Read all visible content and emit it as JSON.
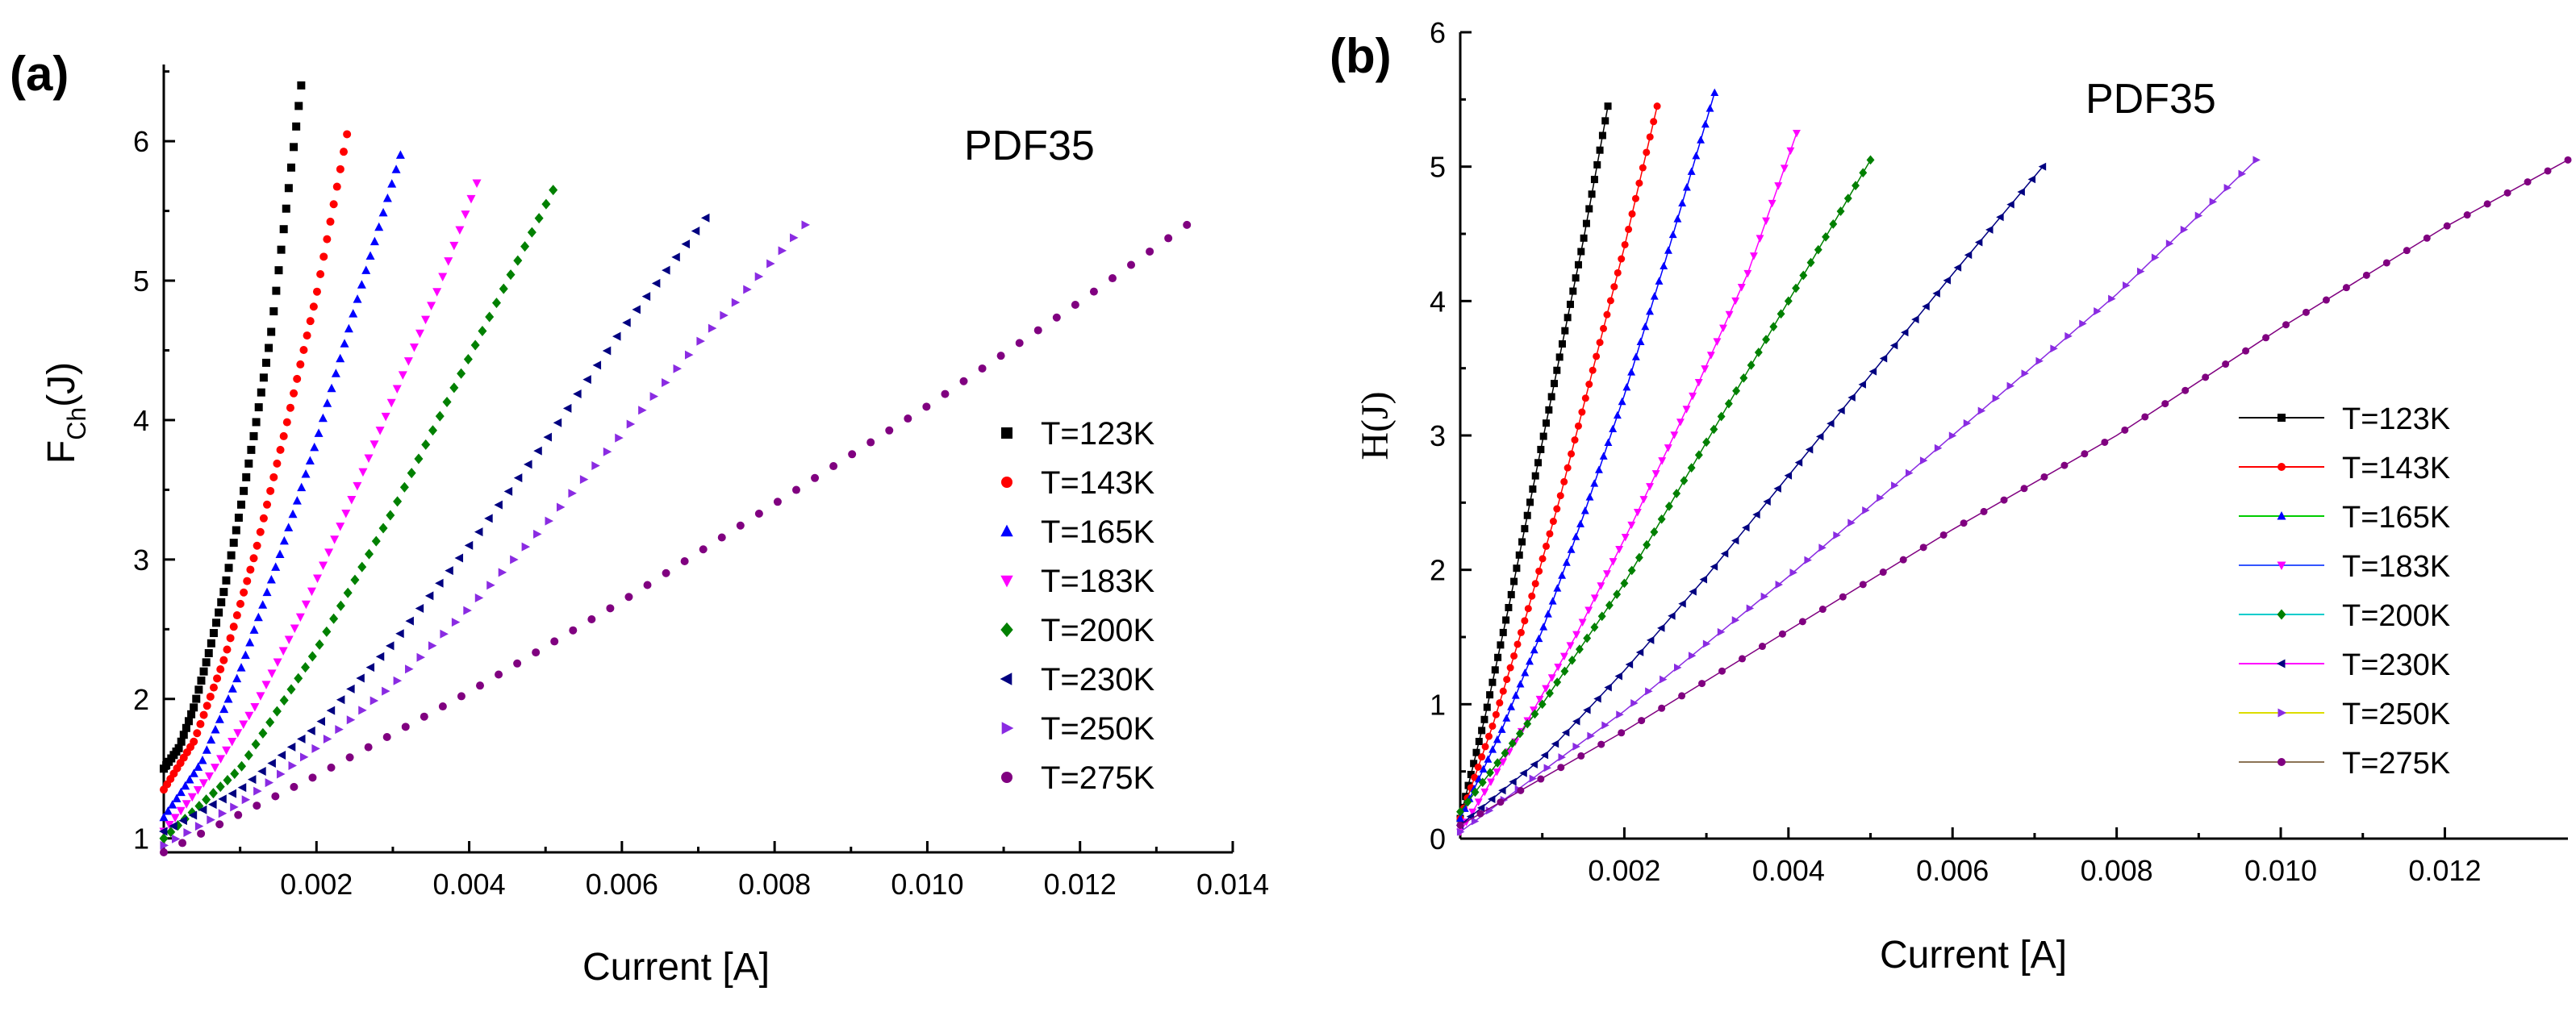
{
  "chart_data": [
    {
      "type": "scatter",
      "panel": "(a)",
      "annotation": "PDF35",
      "xlabel": "Current [A]",
      "ylabel_main": "F",
      "ylabel_sub": "Ch",
      "ylabel_tail": "(J)",
      "xlim": [
        0,
        0.014
      ],
      "ylim": [
        0.9,
        6.55
      ],
      "xticks": [
        0.002,
        0.004,
        0.006,
        0.008,
        0.01,
        0.012,
        0.014
      ],
      "xtick_labels": [
        "0.002",
        "0.004",
        "0.006",
        "0.008",
        "0.010",
        "0.012",
        "0.014"
      ],
      "yticks": [
        1,
        2,
        3,
        4,
        5,
        6
      ],
      "ytick_labels": [
        "1",
        "2",
        "3",
        "4",
        "5",
        "6"
      ],
      "legend_position": "right",
      "series": [
        {
          "name": "T=123K",
          "color": "#000000",
          "marker": "square",
          "x": [
            0,
            0.0002,
            0.0004,
            0.0006,
            0.0008,
            0.001,
            0.0012,
            0.0014,
            0.0016,
            0.0018
          ],
          "y": [
            1.5,
            1.65,
            1.95,
            2.35,
            2.8,
            3.35,
            3.95,
            4.6,
            5.5,
            6.4
          ]
        },
        {
          "name": "T=143K",
          "color": "#ff0000",
          "marker": "circle",
          "x": [
            0,
            0.0004,
            0.0008,
            0.0012,
            0.0016,
            0.002,
            0.0024
          ],
          "y": [
            1.35,
            1.7,
            2.3,
            3.05,
            3.95,
            4.9,
            6.05
          ]
        },
        {
          "name": "T=165K",
          "color": "#0000ff",
          "marker": "triangle-up",
          "x": [
            0,
            0.0005,
            0.001,
            0.0015,
            0.002,
            0.0025,
            0.0031
          ],
          "y": [
            1.15,
            1.55,
            2.2,
            3.0,
            3.85,
            4.8,
            5.9
          ]
        },
        {
          "name": "T=183K",
          "color": "#ff00ff",
          "marker": "triangle-down",
          "x": [
            0,
            0.0006,
            0.0012,
            0.0018,
            0.0024,
            0.003,
            0.0036,
            0.0041
          ],
          "y": [
            1.05,
            1.45,
            1.95,
            2.6,
            3.35,
            4.15,
            4.95,
            5.7
          ]
        },
        {
          "name": "T=200K",
          "color": "#008000",
          "marker": "diamond",
          "x": [
            0,
            0.001,
            0.002,
            0.003,
            0.004,
            0.0051
          ],
          "y": [
            1.0,
            1.5,
            2.35,
            3.35,
            4.45,
            5.65
          ]
        },
        {
          "name": "T=230K",
          "color": "#000080",
          "marker": "triangle-left",
          "x": [
            0,
            0.001,
            0.002,
            0.003,
            0.004,
            0.005,
            0.006,
            0.0071
          ],
          "y": [
            1.05,
            1.35,
            1.8,
            2.4,
            3.1,
            3.85,
            4.65,
            5.45
          ]
        },
        {
          "name": "T=250K",
          "color": "#8a2be2",
          "marker": "triangle-right",
          "x": [
            0,
            0.001,
            0.002,
            0.003,
            0.004,
            0.005,
            0.006,
            0.007,
            0.0084
          ],
          "y": [
            0.95,
            1.25,
            1.65,
            2.1,
            2.65,
            3.25,
            3.9,
            4.55,
            5.4
          ]
        },
        {
          "name": "T=275K",
          "color": "#800080",
          "marker": "circle",
          "x": [
            0,
            0.002,
            0.004,
            0.006,
            0.008,
            0.01,
            0.012,
            0.0134
          ],
          "y": [
            0.9,
            1.45,
            2.05,
            2.7,
            3.4,
            4.1,
            4.85,
            5.4
          ]
        }
      ]
    },
    {
      "type": "line",
      "panel": "(b)",
      "annotation": "PDF35",
      "xlabel": "Current [A]",
      "ylabel": "H(J)",
      "xlim": [
        0,
        0.0135
      ],
      "ylim": [
        0,
        6
      ],
      "xticks": [
        0.002,
        0.004,
        0.006,
        0.008,
        0.01,
        0.012
      ],
      "xtick_labels": [
        "0.002",
        "0.004",
        "0.006",
        "0.008",
        "0.010",
        "0.012"
      ],
      "yticks": [
        0,
        1,
        2,
        3,
        4,
        5,
        6
      ],
      "ytick_labels": [
        "0",
        "1",
        "2",
        "3",
        "4",
        "5",
        "6"
      ],
      "legend_position": "right",
      "series": [
        {
          "name": "T=123K",
          "color": "#000000",
          "legend_line": "#000000",
          "marker": "square",
          "x": [
            0,
            0.0003,
            0.0006,
            0.0009,
            0.0012,
            0.0015,
            0.0018
          ],
          "y": [
            0.15,
            0.9,
            1.75,
            2.65,
            3.55,
            4.45,
            5.45
          ]
        },
        {
          "name": "T=143K",
          "color": "#ff0000",
          "legend_line": "#ff0000",
          "marker": "circle",
          "x": [
            0,
            0.0004,
            0.0008,
            0.0012,
            0.0016,
            0.002,
            0.0024
          ],
          "y": [
            0.15,
            0.85,
            1.65,
            2.5,
            3.45,
            4.4,
            5.45
          ]
        },
        {
          "name": "T=165K",
          "color": "#0000ff",
          "legend_line": "#00cc00",
          "marker": "triangle-up",
          "x": [
            0,
            0.0005,
            0.001,
            0.0015,
            0.002,
            0.0025,
            0.0031
          ],
          "y": [
            0.15,
            0.8,
            1.55,
            2.4,
            3.3,
            4.3,
            5.55
          ]
        },
        {
          "name": "T=183K",
          "color": "#ff00ff",
          "legend_line": "#3355ff",
          "marker": "triangle-down",
          "x": [
            0,
            0.0007,
            0.0014,
            0.0021,
            0.0028,
            0.0035,
            0.0041
          ],
          "y": [
            0.05,
            0.75,
            1.5,
            2.35,
            3.25,
            4.2,
            5.25
          ]
        },
        {
          "name": "T=200K",
          "color": "#008000",
          "legend_line": "#00cccc",
          "marker": "diamond",
          "x": [
            0,
            0.001,
            0.002,
            0.003,
            0.004,
            0.005
          ],
          "y": [
            0.2,
            1.0,
            1.9,
            2.95,
            4.0,
            5.05
          ]
        },
        {
          "name": "T=230K",
          "color": "#000080",
          "legend_line": "#ff00ff",
          "marker": "triangle-left",
          "x": [
            0,
            0.001,
            0.002,
            0.003,
            0.004,
            0.005,
            0.006,
            0.0071
          ],
          "y": [
            0.1,
            0.6,
            1.25,
            1.95,
            2.7,
            3.45,
            4.2,
            5.0
          ]
        },
        {
          "name": "T=250K",
          "color": "#8a2be2",
          "legend_line": "#dddd00",
          "marker": "triangle-right",
          "x": [
            0,
            0.002,
            0.004,
            0.006,
            0.008,
            0.0097
          ],
          "y": [
            0.05,
            0.95,
            1.95,
            3.0,
            4.05,
            5.05
          ]
        },
        {
          "name": "T=275K",
          "color": "#800080",
          "legend_line": "#8b7355",
          "marker": "circle",
          "x": [
            0,
            0.002,
            0.004,
            0.006,
            0.008,
            0.01,
            0.012,
            0.0135
          ],
          "y": [
            0.1,
            0.8,
            1.55,
            2.3,
            3.0,
            3.8,
            4.55,
            5.05
          ]
        }
      ]
    }
  ]
}
